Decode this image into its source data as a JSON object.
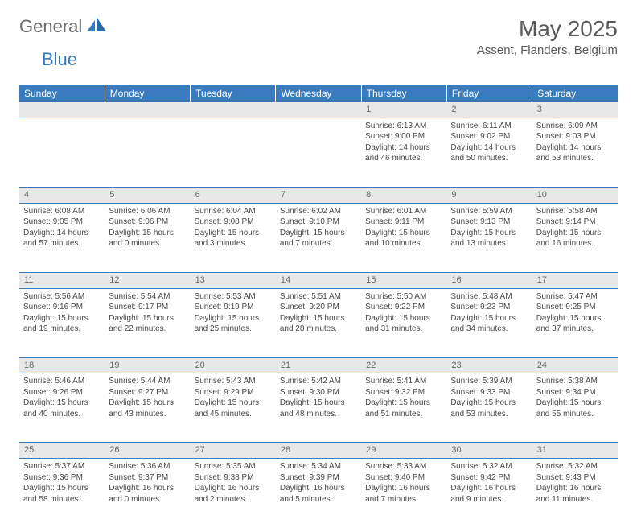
{
  "logo": {
    "part1": "General",
    "part2": "Blue"
  },
  "title": "May 2025",
  "location": "Assent, Flanders, Belgium",
  "colors": {
    "header_bg": "#3a7bbf",
    "header_fg": "#ffffff",
    "daynum_bg": "#e8e8e8",
    "daynum_fg": "#6a6a6a",
    "rule": "#3a7bbf",
    "text": "#4a4a4a",
    "logo_gray": "#6b6b6b",
    "logo_blue": "#3a7bbf",
    "background": "#ffffff"
  },
  "typography": {
    "title_fontsize": 28,
    "location_fontsize": 15,
    "dayheader_fontsize": 12,
    "daynum_fontsize": 11,
    "cell_fontsize": 10
  },
  "day_headers": [
    "Sunday",
    "Monday",
    "Tuesday",
    "Wednesday",
    "Thursday",
    "Friday",
    "Saturday"
  ],
  "weeks": [
    {
      "nums": [
        "",
        "",
        "",
        "",
        "1",
        "2",
        "3"
      ],
      "cells": [
        "",
        "",
        "",
        "",
        "Sunrise: 6:13 AM\nSunset: 9:00 PM\nDaylight: 14 hours and 46 minutes.",
        "Sunrise: 6:11 AM\nSunset: 9:02 PM\nDaylight: 14 hours and 50 minutes.",
        "Sunrise: 6:09 AM\nSunset: 9:03 PM\nDaylight: 14 hours and 53 minutes."
      ]
    },
    {
      "nums": [
        "4",
        "5",
        "6",
        "7",
        "8",
        "9",
        "10"
      ],
      "cells": [
        "Sunrise: 6:08 AM\nSunset: 9:05 PM\nDaylight: 14 hours and 57 minutes.",
        "Sunrise: 6:06 AM\nSunset: 9:06 PM\nDaylight: 15 hours and 0 minutes.",
        "Sunrise: 6:04 AM\nSunset: 9:08 PM\nDaylight: 15 hours and 3 minutes.",
        "Sunrise: 6:02 AM\nSunset: 9:10 PM\nDaylight: 15 hours and 7 minutes.",
        "Sunrise: 6:01 AM\nSunset: 9:11 PM\nDaylight: 15 hours and 10 minutes.",
        "Sunrise: 5:59 AM\nSunset: 9:13 PM\nDaylight: 15 hours and 13 minutes.",
        "Sunrise: 5:58 AM\nSunset: 9:14 PM\nDaylight: 15 hours and 16 minutes."
      ]
    },
    {
      "nums": [
        "11",
        "12",
        "13",
        "14",
        "15",
        "16",
        "17"
      ],
      "cells": [
        "Sunrise: 5:56 AM\nSunset: 9:16 PM\nDaylight: 15 hours and 19 minutes.",
        "Sunrise: 5:54 AM\nSunset: 9:17 PM\nDaylight: 15 hours and 22 minutes.",
        "Sunrise: 5:53 AM\nSunset: 9:19 PM\nDaylight: 15 hours and 25 minutes.",
        "Sunrise: 5:51 AM\nSunset: 9:20 PM\nDaylight: 15 hours and 28 minutes.",
        "Sunrise: 5:50 AM\nSunset: 9:22 PM\nDaylight: 15 hours and 31 minutes.",
        "Sunrise: 5:48 AM\nSunset: 9:23 PM\nDaylight: 15 hours and 34 minutes.",
        "Sunrise: 5:47 AM\nSunset: 9:25 PM\nDaylight: 15 hours and 37 minutes."
      ]
    },
    {
      "nums": [
        "18",
        "19",
        "20",
        "21",
        "22",
        "23",
        "24"
      ],
      "cells": [
        "Sunrise: 5:46 AM\nSunset: 9:26 PM\nDaylight: 15 hours and 40 minutes.",
        "Sunrise: 5:44 AM\nSunset: 9:27 PM\nDaylight: 15 hours and 43 minutes.",
        "Sunrise: 5:43 AM\nSunset: 9:29 PM\nDaylight: 15 hours and 45 minutes.",
        "Sunrise: 5:42 AM\nSunset: 9:30 PM\nDaylight: 15 hours and 48 minutes.",
        "Sunrise: 5:41 AM\nSunset: 9:32 PM\nDaylight: 15 hours and 51 minutes.",
        "Sunrise: 5:39 AM\nSunset: 9:33 PM\nDaylight: 15 hours and 53 minutes.",
        "Sunrise: 5:38 AM\nSunset: 9:34 PM\nDaylight: 15 hours and 55 minutes."
      ]
    },
    {
      "nums": [
        "25",
        "26",
        "27",
        "28",
        "29",
        "30",
        "31"
      ],
      "cells": [
        "Sunrise: 5:37 AM\nSunset: 9:36 PM\nDaylight: 15 hours and 58 minutes.",
        "Sunrise: 5:36 AM\nSunset: 9:37 PM\nDaylight: 16 hours and 0 minutes.",
        "Sunrise: 5:35 AM\nSunset: 9:38 PM\nDaylight: 16 hours and 2 minutes.",
        "Sunrise: 5:34 AM\nSunset: 9:39 PM\nDaylight: 16 hours and 5 minutes.",
        "Sunrise: 5:33 AM\nSunset: 9:40 PM\nDaylight: 16 hours and 7 minutes.",
        "Sunrise: 5:32 AM\nSunset: 9:42 PM\nDaylight: 16 hours and 9 minutes.",
        "Sunrise: 5:32 AM\nSunset: 9:43 PM\nDaylight: 16 hours and 11 minutes."
      ]
    }
  ]
}
